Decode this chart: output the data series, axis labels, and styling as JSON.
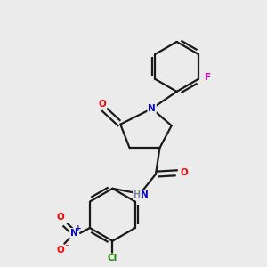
{
  "background_color": "#ebebeb",
  "bond_color": "#1a1a1a",
  "atom_colors": {
    "O": "#ff0000",
    "N": "#0000cc",
    "F": "#cc00cc",
    "Cl": "#228800",
    "H": "#778899",
    "C": "#1a1a1a"
  },
  "figsize": [
    3.0,
    3.0
  ],
  "dpi": 100
}
